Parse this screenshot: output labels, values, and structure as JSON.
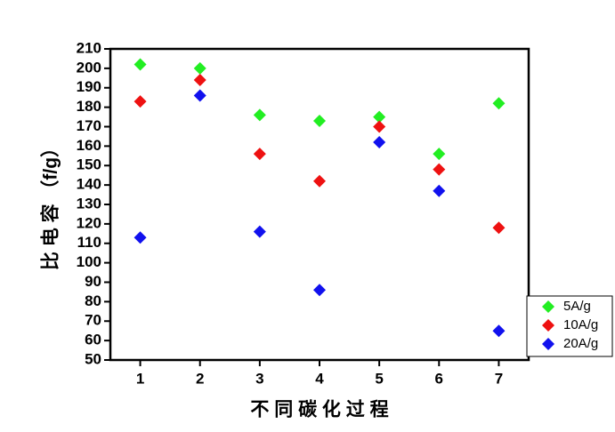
{
  "chart_data": {
    "type": "scatter",
    "x_label": "不 同 碳 化 过 程",
    "y_label": "比 电 容 （f/g）",
    "x": [
      1,
      2,
      3,
      4,
      5,
      6,
      7
    ],
    "series": [
      {
        "name": "5A/g",
        "color": "#22ee22",
        "values": [
          202,
          200,
          176,
          173,
          175,
          156,
          182
        ]
      },
      {
        "name": "10A/g",
        "color": "#ee1111",
        "values": [
          183,
          194,
          156,
          142,
          170,
          148,
          118
        ]
      },
      {
        "name": "20A/g",
        "color": "#1111ee",
        "values": [
          113,
          186,
          116,
          86,
          162,
          137,
          65
        ]
      }
    ],
    "xlim": [
      0.5,
      7.5
    ],
    "xticks": [
      1,
      2,
      3,
      4,
      5,
      6,
      7
    ],
    "ylim": [
      50,
      210
    ],
    "yticks": [
      50,
      60,
      70,
      80,
      90,
      100,
      110,
      120,
      130,
      140,
      150,
      160,
      170,
      180,
      190,
      200,
      210
    ],
    "legend": "lower-right"
  }
}
